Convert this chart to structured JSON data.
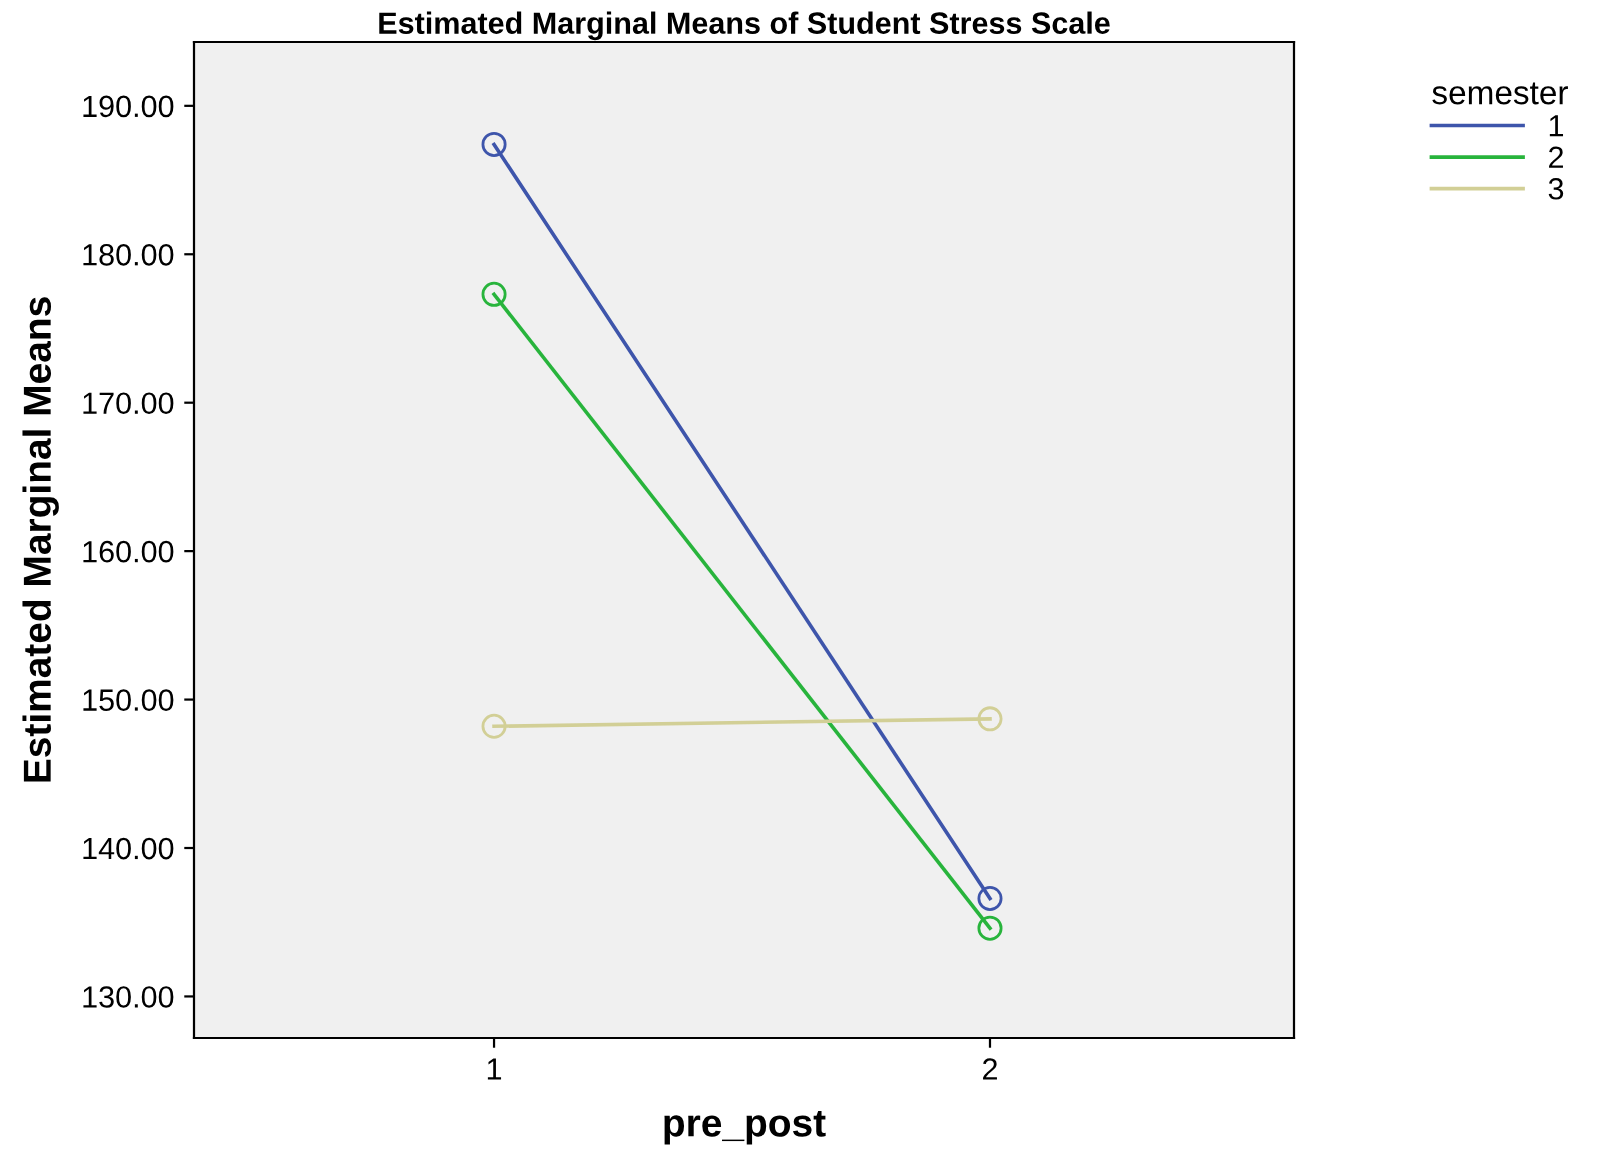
{
  "chart_data": {
    "type": "line",
    "title": "Estimated Marginal Means of Student Stress Scale",
    "xlabel": "pre_post",
    "ylabel": "Estimated Marginal Means",
    "legend_title": "semester",
    "categories": [
      "1",
      "2"
    ],
    "series": [
      {
        "name": "1",
        "color": "#3e55ab",
        "values": [
          187.4,
          136.6
        ]
      },
      {
        "name": "2",
        "color": "#28b43c",
        "values": [
          177.3,
          134.6
        ]
      },
      {
        "name": "3",
        "color": "#d2cf96",
        "values": [
          148.2,
          148.7
        ]
      }
    ],
    "ylim": [
      127.2,
      194.3
    ],
    "yticks": [
      {
        "value": 130,
        "label": "130.00"
      },
      {
        "value": 140,
        "label": "140.00"
      },
      {
        "value": 150,
        "label": "150.00"
      },
      {
        "value": 160,
        "label": "160.00"
      },
      {
        "value": 170,
        "label": "170.00"
      },
      {
        "value": 180,
        "label": "180.00"
      },
      {
        "value": 190,
        "label": "190.00"
      }
    ],
    "marker": "circle",
    "line_style": "solid",
    "grid": false,
    "legend": "top right"
  }
}
